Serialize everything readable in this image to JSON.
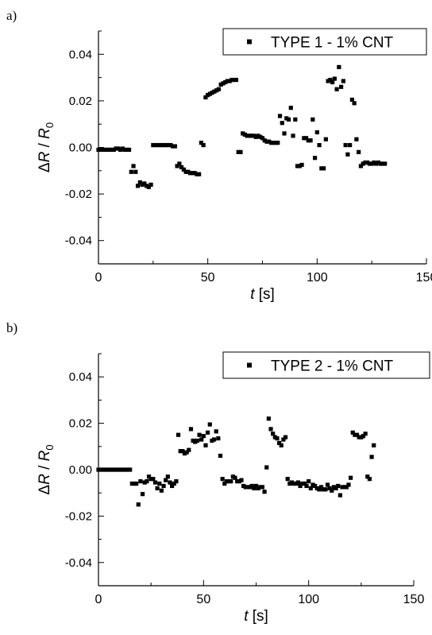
{
  "chart_data": [
    {
      "type": "scatter",
      "panel_label": "a)",
      "title": "",
      "xlabel_var": "t",
      "xlabel_unit": " [s]",
      "ylabel_delta": "Δ",
      "ylabel_var": "R",
      "ylabel_sep": " / ",
      "ylabel_base": "R",
      "ylabel_sub": "0",
      "xlim": [
        0,
        150
      ],
      "ylim": [
        -0.05,
        0.05
      ],
      "xticks": [
        0,
        50,
        100,
        150
      ],
      "xtick_labels": [
        "0",
        "50",
        "100",
        "150"
      ],
      "yticks": [
        -0.04,
        -0.02,
        0.0,
        0.02,
        0.04
      ],
      "ytick_labels": [
        "-0.04",
        "-0.02",
        "0.00",
        "0.02",
        "0.04"
      ],
      "grid": false,
      "legend_position": "top-right",
      "series": [
        {
          "name": "TYPE 1 - 1% CNT",
          "marker": "square",
          "color": "#000000",
          "x": [
            0,
            1,
            2,
            3,
            4,
            5,
            6,
            7,
            8,
            9,
            10,
            11,
            12,
            13,
            14,
            15,
            16,
            17,
            18,
            19,
            20,
            21,
            22,
            23,
            24,
            25,
            26,
            27,
            28,
            29,
            30,
            31,
            32,
            33,
            34,
            35,
            36,
            37,
            38,
            39,
            40,
            41,
            42,
            43,
            44,
            45,
            46,
            47,
            48,
            49,
            50,
            51,
            52,
            53,
            54,
            55,
            56,
            57,
            58,
            59,
            60,
            61,
            62,
            63,
            64,
            65,
            66,
            67,
            68,
            69,
            70,
            71,
            72,
            73,
            74,
            75,
            76,
            77,
            78,
            79,
            80,
            81,
            82,
            83,
            84,
            85,
            86,
            87,
            88,
            89,
            90,
            91,
            92,
            93,
            94,
            95,
            96,
            97,
            98,
            99,
            100,
            101,
            102,
            103,
            104,
            105,
            106,
            107,
            108,
            109,
            110,
            111,
            112,
            113,
            114,
            115,
            116,
            117,
            118,
            119,
            120,
            121,
            122,
            123,
            124,
            125,
            126,
            127,
            128,
            129,
            130,
            131
          ],
          "y": [
            -0.001,
            -0.001,
            -0.001,
            -0.001,
            -0.001,
            -0.001,
            -0.001,
            -0.001,
            -0.0005,
            -0.0005,
            -0.001,
            -0.0005,
            -0.001,
            -0.001,
            -0.001,
            -0.0105,
            -0.008,
            -0.0105,
            -0.0165,
            -0.015,
            -0.016,
            -0.0155,
            -0.0165,
            -0.017,
            -0.016,
            0.001,
            0.001,
            0.001,
            0.001,
            0.001,
            0.001,
            0.001,
            0.001,
            0.001,
            0.0005,
            0.0005,
            -0.008,
            -0.007,
            -0.0085,
            -0.0095,
            -0.0105,
            -0.0105,
            -0.011,
            -0.011,
            -0.011,
            -0.0115,
            -0.0115,
            0.002,
            0.001,
            0.0215,
            0.0225,
            0.023,
            0.0235,
            0.024,
            0.0245,
            0.025,
            0.027,
            0.0275,
            0.028,
            0.0285,
            0.0285,
            0.029,
            0.029,
            0.029,
            -0.002,
            -0.002,
            0.006,
            0.0055,
            0.005,
            0.005,
            0.005,
            0.005,
            0.0045,
            0.005,
            0.0045,
            0.004,
            0.003,
            0.0025,
            0.0025,
            0.002,
            0.002,
            0.002,
            0.002,
            0.0135,
            0.0105,
            0.006,
            0.0125,
            0.012,
            0.017,
            0.005,
            0.012,
            -0.008,
            -0.008,
            -0.0075,
            0.004,
            0.004,
            0.003,
            0.003,
            0.012,
            -0.0045,
            0.0065,
            0.001,
            -0.009,
            -0.009,
            0.0035,
            0.0285,
            0.029,
            0.028,
            0.0295,
            0.025,
            0.0345,
            0.026,
            0.0285,
            0.001,
            -0.003,
            0.001,
            0.0205,
            0.019,
            0.0035,
            -0.002,
            -0.008,
            -0.007,
            -0.0065,
            -0.0065,
            -0.007,
            -0.007,
            -0.0065,
            -0.007,
            -0.0065,
            -0.007,
            -0.007,
            -0.007
          ]
        }
      ]
    },
    {
      "type": "scatter",
      "panel_label": "b)",
      "title": "",
      "xlabel_var": "t",
      "xlabel_unit": " [s]",
      "ylabel_delta": "Δ",
      "ylabel_var": "R",
      "ylabel_sep": " / ",
      "ylabel_base": "R",
      "ylabel_sub": "0",
      "xlim": [
        0,
        150
      ],
      "ylim": [
        -0.05,
        0.05
      ],
      "xticks": [
        0,
        50,
        100,
        150
      ],
      "xtick_labels": [
        "0",
        "50",
        "100",
        "150"
      ],
      "yticks": [
        -0.04,
        -0.02,
        0.0,
        0.02,
        0.04
      ],
      "ytick_labels": [
        "-0.04",
        "-0.02",
        "0.00",
        "0.02",
        "0.04"
      ],
      "grid": false,
      "legend_position": "top-right",
      "series": [
        {
          "name": "TYPE 2 - 1% CNT",
          "marker": "square",
          "color": "#000000",
          "x": [
            0,
            1,
            2,
            3,
            4,
            5,
            6,
            7,
            8,
            9,
            10,
            11,
            12,
            13,
            14,
            15,
            16,
            17,
            18,
            19,
            20,
            21,
            22,
            23,
            24,
            25,
            26,
            27,
            28,
            29,
            30,
            31,
            32,
            33,
            34,
            35,
            36,
            37,
            38,
            39,
            40,
            41,
            42,
            43,
            44,
            45,
            46,
            47,
            48,
            49,
            50,
            51,
            52,
            53,
            54,
            55,
            56,
            57,
            58,
            59,
            60,
            61,
            62,
            63,
            64,
            65,
            66,
            67,
            68,
            69,
            70,
            71,
            72,
            73,
            74,
            75,
            76,
            77,
            78,
            79,
            80,
            81,
            82,
            83,
            84,
            85,
            86,
            87,
            88,
            89,
            90,
            91,
            92,
            93,
            94,
            95,
            96,
            97,
            98,
            99,
            100,
            101,
            102,
            103,
            104,
            105,
            106,
            107,
            108,
            109,
            110,
            111,
            112,
            113,
            114,
            115,
            116,
            117,
            118,
            119,
            120,
            121,
            122,
            123,
            124,
            125,
            126,
            127,
            128,
            129,
            130,
            131
          ],
          "y": [
            0,
            0,
            0,
            0,
            0,
            0,
            0,
            0,
            0,
            0,
            0,
            0,
            0,
            0,
            0,
            0,
            -0.006,
            -0.006,
            -0.006,
            -0.015,
            -0.005,
            -0.0105,
            -0.0055,
            -0.005,
            -0.003,
            -0.004,
            -0.004,
            -0.0055,
            -0.008,
            -0.006,
            -0.009,
            -0.007,
            -0.0045,
            -0.003,
            -0.0055,
            -0.007,
            -0.006,
            -0.005,
            0.015,
            0.008,
            0.008,
            0.007,
            0.0075,
            0.0085,
            0.0175,
            0.0125,
            0.012,
            0.0125,
            0.015,
            0.013,
            0.0145,
            0.0105,
            0.016,
            0.0195,
            0.0125,
            0.013,
            0.0165,
            0.0135,
            0.006,
            -0.004,
            -0.006,
            -0.005,
            -0.005,
            -0.005,
            -0.003,
            -0.0035,
            -0.005,
            -0.005,
            -0.0045,
            -0.007,
            -0.0075,
            -0.0075,
            -0.0075,
            -0.007,
            -0.008,
            -0.007,
            -0.008,
            -0.0075,
            -0.0075,
            -0.0095,
            0.001,
            0.022,
            0.0175,
            0.0155,
            0.014,
            0.0135,
            0.0115,
            0.0105,
            0.013,
            0.014,
            -0.004,
            -0.006,
            -0.0055,
            -0.006,
            -0.006,
            -0.0055,
            -0.007,
            -0.006,
            -0.006,
            -0.007,
            -0.005,
            -0.008,
            -0.0065,
            -0.007,
            -0.008,
            -0.0085,
            -0.0075,
            -0.0085,
            -0.0085,
            -0.0065,
            -0.008,
            -0.009,
            -0.0075,
            -0.008,
            -0.007,
            -0.011,
            -0.0075,
            -0.0075,
            -0.0075,
            -0.0065,
            -0.0035,
            0.016,
            0.015,
            0.015,
            0.014,
            0.014,
            0.0145,
            0.0155,
            -0.003,
            -0.004,
            0.0055,
            0.0105
          ]
        }
      ]
    }
  ]
}
